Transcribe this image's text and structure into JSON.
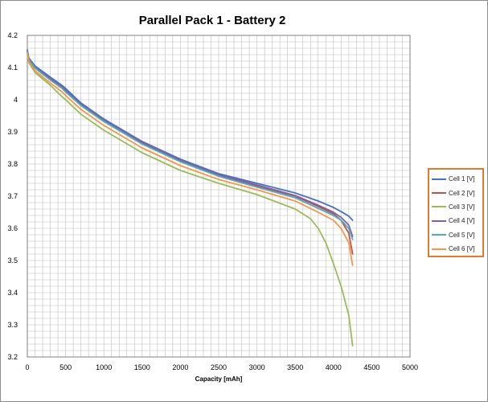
{
  "chart_data": {
    "type": "line",
    "title": "Parallel Pack 1 - Battery 2",
    "xlabel": "Capacity [mAh]",
    "ylabel": "",
    "xlim": [
      0,
      5000
    ],
    "ylim": [
      3.2,
      4.2
    ],
    "x_ticks": [
      "0",
      "500",
      "1000",
      "1500",
      "2000",
      "2500",
      "3000",
      "3500",
      "4000",
      "4500",
      "5000"
    ],
    "y_ticks": [
      "3.2",
      "3.3",
      "3.4",
      "3.5",
      "3.6",
      "3.7",
      "3.8",
      "3.9",
      "4",
      "4.1",
      "4.2"
    ],
    "grid": true,
    "legend_position": "right",
    "series": [
      {
        "name": "Cell 1 [V]",
        "color": "#4472c4",
        "points": [
          [
            0,
            4.155
          ],
          [
            20,
            4.13
          ],
          [
            100,
            4.105
          ],
          [
            300,
            4.07
          ],
          [
            450,
            4.045
          ],
          [
            500,
            4.035
          ],
          [
            700,
            3.99
          ],
          [
            1000,
            3.94
          ],
          [
            1500,
            3.87
          ],
          [
            2000,
            3.815
          ],
          [
            2500,
            3.77
          ],
          [
            3000,
            3.74
          ],
          [
            3500,
            3.71
          ],
          [
            3800,
            3.685
          ],
          [
            4000,
            3.665
          ],
          [
            4100,
            3.652
          ],
          [
            4200,
            3.638
          ],
          [
            4250,
            3.625
          ]
        ]
      },
      {
        "name": "Cell 2 [V]",
        "color": "#c0504d",
        "points": [
          [
            0,
            4.15
          ],
          [
            20,
            4.125
          ],
          [
            100,
            4.1
          ],
          [
            300,
            4.063
          ],
          [
            450,
            4.04
          ],
          [
            500,
            4.028
          ],
          [
            700,
            3.985
          ],
          [
            1000,
            3.935
          ],
          [
            1500,
            3.865
          ],
          [
            2000,
            3.81
          ],
          [
            2500,
            3.765
          ],
          [
            3000,
            3.732
          ],
          [
            3500,
            3.7
          ],
          [
            3800,
            3.668
          ],
          [
            4000,
            3.645
          ],
          [
            4100,
            3.625
          ],
          [
            4200,
            3.585
          ],
          [
            4250,
            3.52
          ]
        ]
      },
      {
        "name": "Cell 3 [V]",
        "color": "#9bbb59",
        "points": [
          [
            0,
            4.14
          ],
          [
            20,
            4.115
          ],
          [
            100,
            4.085
          ],
          [
            300,
            4.045
          ],
          [
            450,
            4.01
          ],
          [
            500,
            4.0
          ],
          [
            700,
            3.955
          ],
          [
            1000,
            3.905
          ],
          [
            1500,
            3.835
          ],
          [
            2000,
            3.78
          ],
          [
            2500,
            3.74
          ],
          [
            3000,
            3.705
          ],
          [
            3500,
            3.66
          ],
          [
            3700,
            3.63
          ],
          [
            3800,
            3.6
          ],
          [
            3900,
            3.555
          ],
          [
            4000,
            3.49
          ],
          [
            4100,
            3.42
          ],
          [
            4200,
            3.33
          ],
          [
            4250,
            3.235
          ]
        ]
      },
      {
        "name": "Cell 4 [V]",
        "color": "#8064a2",
        "points": [
          [
            0,
            4.152
          ],
          [
            20,
            4.127
          ],
          [
            100,
            4.102
          ],
          [
            300,
            4.066
          ],
          [
            450,
            4.042
          ],
          [
            500,
            4.03
          ],
          [
            700,
            3.987
          ],
          [
            1000,
            3.937
          ],
          [
            1500,
            3.868
          ],
          [
            2000,
            3.812
          ],
          [
            2500,
            3.767
          ],
          [
            3000,
            3.735
          ],
          [
            3500,
            3.702
          ],
          [
            3800,
            3.672
          ],
          [
            4000,
            3.65
          ],
          [
            4100,
            3.634
          ],
          [
            4200,
            3.61
          ],
          [
            4250,
            3.575
          ]
        ]
      },
      {
        "name": "Cell 5 [V]",
        "color": "#4bacc6",
        "points": [
          [
            0,
            4.15
          ],
          [
            20,
            4.124
          ],
          [
            100,
            4.098
          ],
          [
            300,
            4.061
          ],
          [
            450,
            4.036
          ],
          [
            500,
            4.024
          ],
          [
            700,
            3.982
          ],
          [
            1000,
            3.932
          ],
          [
            1500,
            3.862
          ],
          [
            2000,
            3.807
          ],
          [
            2500,
            3.762
          ],
          [
            3000,
            3.728
          ],
          [
            3500,
            3.695
          ],
          [
            3800,
            3.662
          ],
          [
            4000,
            3.64
          ],
          [
            4100,
            3.625
          ],
          [
            4200,
            3.6
          ],
          [
            4250,
            3.565
          ]
        ]
      },
      {
        "name": "Cell 6 [V]",
        "color": "#f79646",
        "points": [
          [
            0,
            4.145
          ],
          [
            20,
            4.118
          ],
          [
            100,
            4.09
          ],
          [
            300,
            4.052
          ],
          [
            450,
            4.025
          ],
          [
            500,
            4.013
          ],
          [
            700,
            3.97
          ],
          [
            1000,
            3.92
          ],
          [
            1500,
            3.85
          ],
          [
            2000,
            3.795
          ],
          [
            2500,
            3.752
          ],
          [
            3000,
            3.72
          ],
          [
            3500,
            3.685
          ],
          [
            3800,
            3.65
          ],
          [
            4000,
            3.625
          ],
          [
            4100,
            3.6
          ],
          [
            4200,
            3.555
          ],
          [
            4250,
            3.485
          ]
        ]
      }
    ]
  }
}
